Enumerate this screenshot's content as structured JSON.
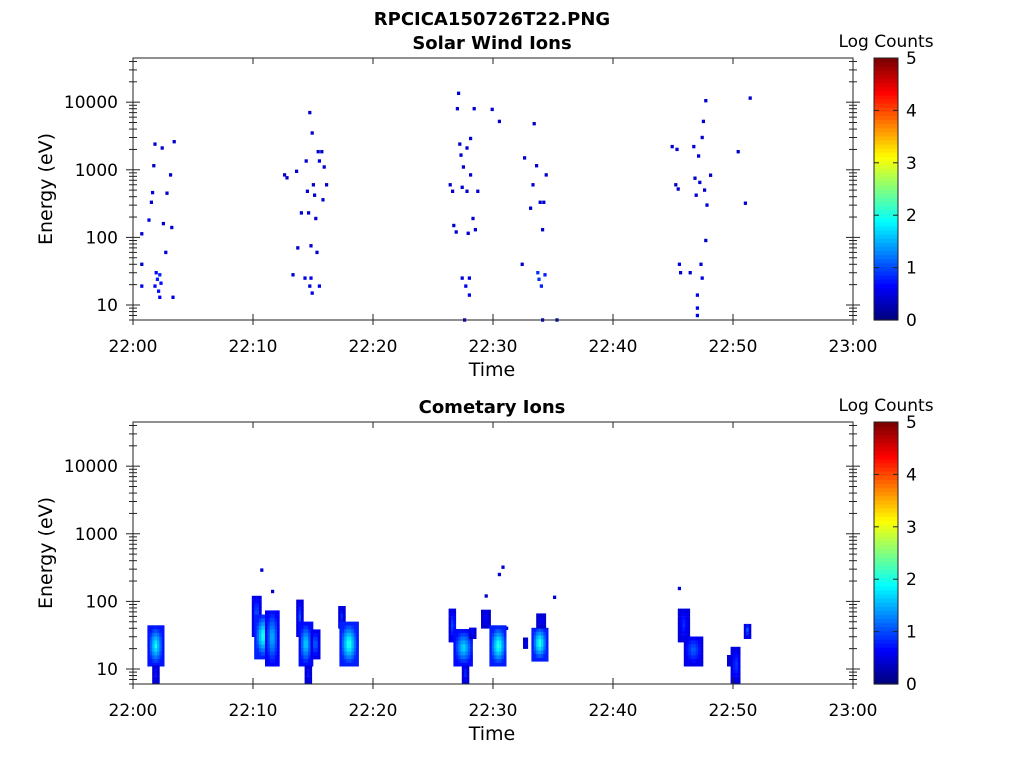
{
  "figure_title": "RPCICA150726T22.PNG",
  "colorbar": {
    "label": "Log Counts",
    "ticks": [
      "0",
      "1",
      "2",
      "3",
      "4",
      "5"
    ],
    "colormap": "jet",
    "range": [
      0,
      5
    ]
  },
  "chart_data": [
    {
      "type": "heatmap",
      "title": "Solar Wind Ions",
      "xlabel": "Time",
      "ylabel": "Energy (eV)",
      "x_ticks": [
        "22:00",
        "22:10",
        "22:20",
        "22:30",
        "22:40",
        "22:50",
        "23:00"
      ],
      "y_ticks": [
        "10",
        "100",
        "1000",
        "10000"
      ],
      "x_range": [
        "22:00",
        "23:00"
      ],
      "y_scale": "log",
      "y_range_eV": [
        6,
        45000
      ],
      "points": [
        {
          "t": "22:00.6",
          "e": 113,
          "c": 0.1
        },
        {
          "t": "22:00.6",
          "e": 40,
          "c": 0.1
        },
        {
          "t": "22:00.6",
          "e": 19,
          "c": 0.2
        },
        {
          "t": "22:01.2",
          "e": 180,
          "c": 0.2
        },
        {
          "t": "22:01.4",
          "e": 330,
          "c": 0.1
        },
        {
          "t": "22:01.5",
          "e": 460,
          "c": 0.2
        },
        {
          "t": "22:01.6",
          "e": 1150,
          "c": 0.1
        },
        {
          "t": "22:01.7",
          "e": 2400,
          "c": 0.1
        },
        {
          "t": "22:01.7",
          "e": 19,
          "c": 0.3
        },
        {
          "t": "22:01.8",
          "e": 30,
          "c": 0.4
        },
        {
          "t": "22:01.9",
          "e": 24,
          "c": 0.5
        },
        {
          "t": "22:02.0",
          "e": 16,
          "c": 0.4
        },
        {
          "t": "22:02.1",
          "e": 13,
          "c": 0.3
        },
        {
          "t": "22:02.1",
          "e": 28,
          "c": 0.5
        },
        {
          "t": "22:02.2",
          "e": 21,
          "c": 0.4
        },
        {
          "t": "22:02.3",
          "e": 2100,
          "c": 0.1
        },
        {
          "t": "22:02.4",
          "e": 160,
          "c": 0.1
        },
        {
          "t": "22:02.6",
          "e": 60,
          "c": 0.1
        },
        {
          "t": "22:02.7",
          "e": 450,
          "c": 0.1
        },
        {
          "t": "22:03.0",
          "e": 840,
          "c": 0.1
        },
        {
          "t": "22:03.1",
          "e": 140,
          "c": 0.1
        },
        {
          "t": "22:03.2",
          "e": 13,
          "c": 0.2
        },
        {
          "t": "22:03.3",
          "e": 2600,
          "c": 0.1
        },
        {
          "t": "22:12.5",
          "e": 840,
          "c": 0.1
        },
        {
          "t": "22:12.7",
          "e": 760,
          "c": 0.1
        },
        {
          "t": "22:13.2",
          "e": 28,
          "c": 0.1
        },
        {
          "t": "22:13.5",
          "e": 950,
          "c": 0.1
        },
        {
          "t": "22:13.6",
          "e": 70,
          "c": 0.1
        },
        {
          "t": "22:13.9",
          "e": 230,
          "c": 0.1
        },
        {
          "t": "22:14.2",
          "e": 25,
          "c": 0.2
        },
        {
          "t": "22:14.3",
          "e": 1350,
          "c": 0.1
        },
        {
          "t": "22:14.4",
          "e": 480,
          "c": 0.1
        },
        {
          "t": "22:14.5",
          "e": 230,
          "c": 0.1
        },
        {
          "t": "22:14.6",
          "e": 19,
          "c": 0.2
        },
        {
          "t": "22:14.6",
          "e": 7000,
          "c": 0.1
        },
        {
          "t": "22:14.7",
          "e": 25,
          "c": 0.3
        },
        {
          "t": "22:14.7",
          "e": 75,
          "c": 0.1
        },
        {
          "t": "22:14.8",
          "e": 3500,
          "c": 0.1
        },
        {
          "t": "22:14.8",
          "e": 15,
          "c": 0.2
        },
        {
          "t": "22:14.9",
          "e": 600,
          "c": 0.1
        },
        {
          "t": "22:15.0",
          "e": 420,
          "c": 0.1
        },
        {
          "t": "22:15.1",
          "e": 190,
          "c": 0.1
        },
        {
          "t": "22:15.2",
          "e": 60,
          "c": 0.1
        },
        {
          "t": "22:15.3",
          "e": 1850,
          "c": 0.1
        },
        {
          "t": "22:15.4",
          "e": 1350,
          "c": 0.1
        },
        {
          "t": "22:15.4",
          "e": 19,
          "c": 0.2
        },
        {
          "t": "22:15.6",
          "e": 1850,
          "c": 0.1
        },
        {
          "t": "22:15.7",
          "e": 360,
          "c": 0.1
        },
        {
          "t": "22:15.8",
          "e": 1100,
          "c": 0.1
        },
        {
          "t": "22:16.0",
          "e": 600,
          "c": 0.1
        },
        {
          "t": "22:26.3",
          "e": 600,
          "c": 0.1
        },
        {
          "t": "22:26.5",
          "e": 480,
          "c": 0.1
        },
        {
          "t": "22:26.6",
          "e": 150,
          "c": 0.1
        },
        {
          "t": "22:26.8",
          "e": 120,
          "c": 0.1
        },
        {
          "t": "22:26.9",
          "e": 8000,
          "c": 0.1
        },
        {
          "t": "22:27.0",
          "e": 13500,
          "c": 0.1
        },
        {
          "t": "22:27.1",
          "e": 2400,
          "c": 0.1
        },
        {
          "t": "22:27.2",
          "e": 1650,
          "c": 0.1
        },
        {
          "t": "22:27.3",
          "e": 550,
          "c": 0.1
        },
        {
          "t": "22:27.3",
          "e": 25,
          "c": 0.2
        },
        {
          "t": "22:27.4",
          "e": 1100,
          "c": 0.1
        },
        {
          "t": "22:27.5",
          "e": 6,
          "c": 0.1
        },
        {
          "t": "22:27.6",
          "e": 19,
          "c": 0.3
        },
        {
          "t": "22:27.7",
          "e": 480,
          "c": 0.1
        },
        {
          "t": "22:27.7",
          "e": 2100,
          "c": 0.1
        },
        {
          "t": "22:27.8",
          "e": 115,
          "c": 0.1
        },
        {
          "t": "22:27.9",
          "e": 25,
          "c": 0.2
        },
        {
          "t": "22:27.9",
          "e": 14,
          "c": 0.3
        },
        {
          "t": "22:28.0",
          "e": 2900,
          "c": 0.1
        },
        {
          "t": "22:28.0",
          "e": 840,
          "c": 0.1
        },
        {
          "t": "22:28.2",
          "e": 190,
          "c": 0.1
        },
        {
          "t": "22:28.3",
          "e": 8000,
          "c": 0.1
        },
        {
          "t": "22:28.4",
          "e": 130,
          "c": 0.1
        },
        {
          "t": "22:28.6",
          "e": 480,
          "c": 0.1
        },
        {
          "t": "22:29.8",
          "e": 7800,
          "c": 0.1
        },
        {
          "t": "22:30.4",
          "e": 5200,
          "c": 0.1
        },
        {
          "t": "22:32.3",
          "e": 40,
          "c": 0.1
        },
        {
          "t": "22:32.5",
          "e": 1500,
          "c": 0.1
        },
        {
          "t": "22:33.0",
          "e": 270,
          "c": 0.1
        },
        {
          "t": "22:33.2",
          "e": 600,
          "c": 0.1
        },
        {
          "t": "22:33.3",
          "e": 4800,
          "c": 0.1
        },
        {
          "t": "22:33.5",
          "e": 1150,
          "c": 0.1
        },
        {
          "t": "22:33.6",
          "e": 30,
          "c": 0.6
        },
        {
          "t": "22:33.7",
          "e": 24,
          "c": 0.6
        },
        {
          "t": "22:33.8",
          "e": 330,
          "c": 0.1
        },
        {
          "t": "22:33.9",
          "e": 19,
          "c": 0.5
        },
        {
          "t": "22:34.0",
          "e": 130,
          "c": 0.1
        },
        {
          "t": "22:34.0",
          "e": 6,
          "c": 0.1
        },
        {
          "t": "22:34.1",
          "e": 330,
          "c": 0.1
        },
        {
          "t": "22:34.2",
          "e": 28,
          "c": 0.5
        },
        {
          "t": "22:34.3",
          "e": 840,
          "c": 0.1
        },
        {
          "t": "22:35.2",
          "e": 6,
          "c": 0.1
        },
        {
          "t": "22:44.8",
          "e": 2200,
          "c": 0.1
        },
        {
          "t": "22:45.1",
          "e": 600,
          "c": 0.1
        },
        {
          "t": "22:45.2",
          "e": 2000,
          "c": 0.1
        },
        {
          "t": "22:45.3",
          "e": 520,
          "c": 0.1
        },
        {
          "t": "22:45.4",
          "e": 40,
          "c": 0.2
        },
        {
          "t": "22:45.5",
          "e": 30,
          "c": 0.1
        },
        {
          "t": "22:46.3",
          "e": 30,
          "c": 0.1
        },
        {
          "t": "22:46.6",
          "e": 2200,
          "c": 0.1
        },
        {
          "t": "22:46.7",
          "e": 750,
          "c": 0.1
        },
        {
          "t": "22:46.8",
          "e": 420,
          "c": 0.1
        },
        {
          "t": "22:46.9",
          "e": 14,
          "c": 0.3
        },
        {
          "t": "22:46.9",
          "e": 9,
          "c": 0.3
        },
        {
          "t": "22:46.9",
          "e": 7,
          "c": 0.3
        },
        {
          "t": "22:47.0",
          "e": 1600,
          "c": 0.1
        },
        {
          "t": "22:47.1",
          "e": 650,
          "c": 0.1
        },
        {
          "t": "22:47.2",
          "e": 40,
          "c": 0.1
        },
        {
          "t": "22:47.3",
          "e": 25,
          "c": 0.2
        },
        {
          "t": "22:47.3",
          "e": 3000,
          "c": 0.1
        },
        {
          "t": "22:47.4",
          "e": 5200,
          "c": 0.1
        },
        {
          "t": "22:47.5",
          "e": 500,
          "c": 0.1
        },
        {
          "t": "22:47.6",
          "e": 90,
          "c": 0.1
        },
        {
          "t": "22:47.6",
          "e": 10500,
          "c": 0.1
        },
        {
          "t": "22:47.7",
          "e": 300,
          "c": 0.1
        },
        {
          "t": "22:48.0",
          "e": 830,
          "c": 0.1
        },
        {
          "t": "22:50.3",
          "e": 1850,
          "c": 0.1
        },
        {
          "t": "22:50.9",
          "e": 320,
          "c": 0.1
        },
        {
          "t": "22:51.3",
          "e": 11500,
          "c": 0.1
        }
      ]
    },
    {
      "type": "heatmap",
      "title": "Cometary Ions",
      "xlabel": "Time",
      "ylabel": "Energy (eV)",
      "x_ticks": [
        "22:00",
        "22:10",
        "22:20",
        "22:30",
        "22:40",
        "22:50",
        "23:00"
      ],
      "y_ticks": [
        "10",
        "100",
        "1000",
        "10000"
      ],
      "x_range": [
        "22:00",
        "23:00"
      ],
      "y_scale": "log",
      "y_range_eV": [
        6,
        45000
      ],
      "blobs": [
        {
          "t0": "22:01.2",
          "t1": "22:02.4",
          "e0": 11,
          "e1": 40,
          "peak": 1.8
        },
        {
          "t0": "22:01.6",
          "t1": "22:02.0",
          "e0": 6,
          "e1": 11,
          "peak": 0.5
        },
        {
          "t0": "22:09.9",
          "t1": "22:10.5",
          "e0": 30,
          "e1": 110,
          "peak": 1.0
        },
        {
          "t0": "22:10.1",
          "t1": "22:11.5",
          "e0": 14,
          "e1": 60,
          "peak": 2.0
        },
        {
          "t0": "22:11.0",
          "t1": "22:12.0",
          "e0": 11,
          "e1": 70,
          "peak": 1.4
        },
        {
          "t0": "22:13.6",
          "t1": "22:14.0",
          "e0": 30,
          "e1": 100,
          "peak": 0.8
        },
        {
          "t0": "22:13.8",
          "t1": "22:14.8",
          "e0": 11,
          "e1": 45,
          "peak": 1.6
        },
        {
          "t0": "22:14.3",
          "t1": "22:14.7",
          "e0": 6,
          "e1": 11,
          "peak": 0.5
        },
        {
          "t0": "22:14.8",
          "t1": "22:15.4",
          "e0": 14,
          "e1": 35,
          "peak": 1.0
        },
        {
          "t0": "22:17.1",
          "t1": "22:17.5",
          "e0": 40,
          "e1": 80,
          "peak": 0.6
        },
        {
          "t0": "22:17.2",
          "t1": "22:18.6",
          "e0": 11,
          "e1": 45,
          "peak": 2.0
        },
        {
          "t0": "22:26.3",
          "t1": "22:26.8",
          "e0": 25,
          "e1": 70,
          "peak": 0.8
        },
        {
          "t0": "22:26.7",
          "t1": "22:28.2",
          "e0": 11,
          "e1": 35,
          "peak": 1.6
        },
        {
          "t0": "22:27.4",
          "t1": "22:27.8",
          "e0": 6,
          "e1": 11,
          "peak": 0.6
        },
        {
          "t0": "22:28.0",
          "t1": "22:28.4",
          "e0": 28,
          "e1": 40,
          "peak": 0.5
        },
        {
          "t0": "22:29.0",
          "t1": "22:29.6",
          "e0": 40,
          "e1": 75,
          "peak": 0.4
        },
        {
          "t0": "22:29.7",
          "t1": "22:31.0",
          "e0": 11,
          "e1": 40,
          "peak": 2.0
        },
        {
          "t0": "22:32.5",
          "t1": "22:32.8",
          "e0": 20,
          "e1": 26,
          "peak": 0.4
        },
        {
          "t0": "22:33.2",
          "t1": "22:34.4",
          "e0": 13,
          "e1": 40,
          "peak": 2.0
        },
        {
          "t0": "22:33.6",
          "t1": "22:34.2",
          "e0": 40,
          "e1": 60,
          "peak": 0.4
        },
        {
          "t0": "22:45.4",
          "t1": "22:46.2",
          "e0": 25,
          "e1": 75,
          "peak": 0.6
        },
        {
          "t0": "22:45.9",
          "t1": "22:47.3",
          "e0": 11,
          "e1": 30,
          "peak": 0.9
        },
        {
          "t0": "22:49.5",
          "t1": "22:49.7",
          "e0": 11,
          "e1": 16,
          "peak": 0.5
        },
        {
          "t0": "22:49.8",
          "t1": "22:50.5",
          "e0": 6,
          "e1": 20,
          "peak": 0.7
        },
        {
          "t0": "22:50.9",
          "t1": "22:51.3",
          "e0": 28,
          "e1": 45,
          "peak": 0.9
        }
      ],
      "points": [
        {
          "t": "22:10.6",
          "e": 290,
          "c": 0.1
        },
        {
          "t": "22:11.5",
          "e": 140,
          "c": 0.1
        },
        {
          "t": "22:29.3",
          "e": 120,
          "c": 0.1
        },
        {
          "t": "22:30.4",
          "e": 250,
          "c": 0.1
        },
        {
          "t": "22:30.7",
          "e": 320,
          "c": 0.1
        },
        {
          "t": "22:31.0",
          "e": 40,
          "c": 0.1
        },
        {
          "t": "22:35.0",
          "e": 115,
          "c": 0.1
        },
        {
          "t": "22:45.4",
          "e": 155,
          "c": 0.1
        }
      ]
    }
  ]
}
